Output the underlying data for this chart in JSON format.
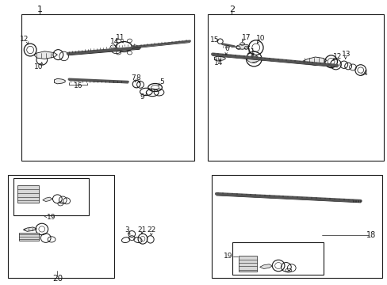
{
  "bg": "#ffffff",
  "lc": "#1a1a1a",
  "gray": "#888888",
  "lgray": "#cccccc",
  "figsize": [
    4.89,
    3.6
  ],
  "dpi": 100,
  "boxes": {
    "b1": [
      0.055,
      0.435,
      0.445,
      0.515
    ],
    "b2": [
      0.535,
      0.435,
      0.455,
      0.515
    ],
    "b3": [
      0.02,
      0.025,
      0.275,
      0.36
    ],
    "b4": [
      0.545,
      0.025,
      0.44,
      0.36
    ]
  },
  "inner_boxes": {
    "b3i": [
      0.035,
      0.245,
      0.195,
      0.13
    ],
    "b4i": [
      0.6,
      0.035,
      0.235,
      0.115
    ]
  }
}
